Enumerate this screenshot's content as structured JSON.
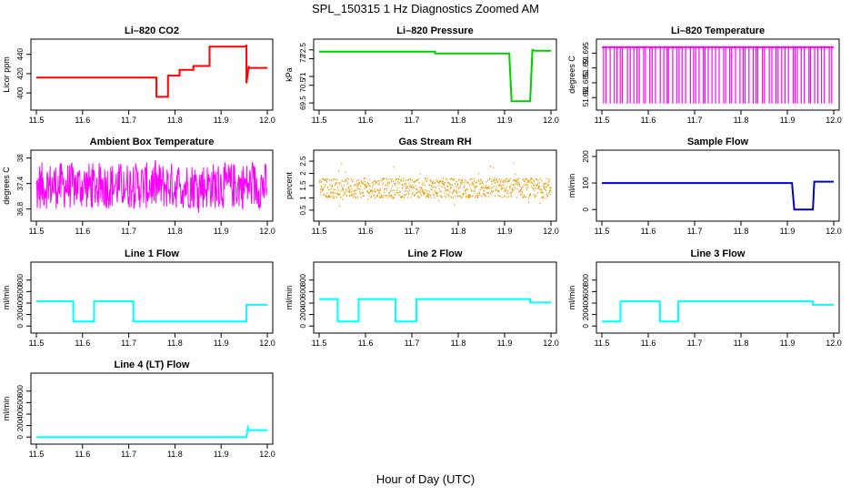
{
  "figure": {
    "title": "SPL_150315  1 Hz Diagnostics Zoomed AM",
    "xlabel": "Hour of Day (UTC)"
  },
  "chart_data": [
    {
      "type": "line",
      "title": "Li–820 CO2",
      "ylabel": "Licor ppm",
      "color": "#ff0000",
      "xlim": [
        11.5,
        12.0
      ],
      "ylim": [
        386,
        452
      ],
      "xticks": [
        "11.5",
        "11.6",
        "11.7",
        "11.8",
        "11.9",
        "12.0"
      ],
      "yticks": [
        380,
        400,
        420,
        440
      ],
      "series": [
        {
          "x": [
            11.5,
            11.76,
            11.76,
            11.785,
            11.785,
            11.81,
            11.81,
            11.84,
            11.84,
            11.875,
            11.875,
            11.95,
            11.955,
            11.955,
            11.96,
            11.96,
            11.97,
            12.0
          ],
          "y": [
            416,
            416,
            396,
            396,
            418,
            418,
            424,
            424,
            428,
            428,
            448,
            448,
            449,
            410,
            428,
            426,
            426,
            426
          ]
        }
      ]
    },
    {
      "type": "line",
      "title": "Li–820 Pressure",
      "ylabel": "kPa",
      "color": "#00cc00",
      "xlim": [
        11.5,
        12.0
      ],
      "ylim": [
        69.3,
        72.9
      ],
      "xticks": [
        "11.5",
        "11.6",
        "11.7",
        "11.8",
        "11.9",
        "12.0"
      ],
      "yticks": [
        69.5,
        70.5,
        71.0,
        72.0,
        72.5
      ],
      "series": [
        {
          "x": [
            11.5,
            11.75,
            11.75,
            11.91,
            11.915,
            11.915,
            11.955,
            11.96,
            11.965,
            12.0
          ],
          "y": [
            72.4,
            72.4,
            72.3,
            72.3,
            69.7,
            69.6,
            69.6,
            72.5,
            72.45,
            72.45
          ]
        }
      ]
    },
    {
      "type": "line",
      "title": "Li–820 Temperature",
      "ylabel": "degrees C",
      "color": "#ff00ff",
      "xlim": [
        11.5,
        12.0
      ],
      "ylim": [
        51.677,
        51.6985
      ],
      "xticks": [
        "11.5",
        "11.6",
        "11.7",
        "11.8",
        "11.9",
        "12.0"
      ],
      "yticks": [
        51.68,
        51.685,
        51.69,
        51.695
      ],
      "pattern": "toggling between 51.678 and 51.697"
    },
    {
      "type": "line",
      "title": "Ambient Box Temperature",
      "ylabel": "degrees C",
      "color": "#ff00ff",
      "xlim": [
        11.5,
        12.0
      ],
      "ylim": [
        36.6,
        38.1
      ],
      "xticks": [
        "11.5",
        "11.6",
        "11.7",
        "11.8",
        "11.9",
        "12.0"
      ],
      "yticks": [
        36.8,
        37.4,
        38.0
      ],
      "pattern": "dense noise between 36.8 and 37.9"
    },
    {
      "type": "scatter",
      "title": "Gas Stream RH",
      "ylabel": "percent",
      "color": "#e69a00",
      "xlim": [
        11.5,
        12.0
      ],
      "ylim": [
        0.2,
        2.8
      ],
      "xticks": [
        "11.5",
        "11.6",
        "11.7",
        "11.8",
        "11.9",
        "12.0"
      ],
      "yticks": [
        0.5,
        1.0,
        1.5,
        2.0,
        2.5
      ],
      "pattern": "dense noise between 1.0 and 1.8"
    },
    {
      "type": "line",
      "title": "Sample Flow",
      "ylabel": "ml/min",
      "color": "#0000cc",
      "xlim": [
        11.5,
        12.0
      ],
      "ylim": [
        -30,
        210
      ],
      "xticks": [
        "11.5",
        "11.6",
        "11.7",
        "11.8",
        "11.9",
        "12.0"
      ],
      "yticks": [
        0,
        100,
        200
      ],
      "series": [
        {
          "x": [
            11.5,
            11.91,
            11.915,
            11.955,
            11.958,
            12.0
          ],
          "y": [
            100,
            100,
            0,
            0,
            105,
            105
          ]
        }
      ]
    },
    {
      "type": "line",
      "title": "Line 1 Flow",
      "ylabel": "ml/min",
      "color": "#00ffff",
      "xlim": [
        11.5,
        12.0
      ],
      "ylim": [
        -60,
        1050
      ],
      "xticks": [
        "11.5",
        "11.6",
        "11.7",
        "11.8",
        "11.9",
        "12.0"
      ],
      "yticks": [
        0,
        200,
        400,
        600,
        800
      ],
      "series": [
        {
          "x": [
            11.5,
            11.58,
            11.58,
            11.625,
            11.625,
            11.71,
            11.71,
            11.955,
            11.955,
            12.0
          ],
          "y": [
            430,
            430,
            80,
            80,
            430,
            430,
            80,
            80,
            370,
            370
          ]
        }
      ]
    },
    {
      "type": "line",
      "title": "Line 2 Flow",
      "ylabel": "ml/min",
      "color": "#00ffff",
      "xlim": [
        11.5,
        12.0
      ],
      "ylim": [
        -60,
        1050
      ],
      "xticks": [
        "11.5",
        "11.6",
        "11.7",
        "11.8",
        "11.9",
        "12.0"
      ],
      "yticks": [
        0,
        200,
        400,
        600,
        800
      ],
      "series": [
        {
          "x": [
            11.5,
            11.54,
            11.54,
            11.585,
            11.585,
            11.665,
            11.665,
            11.71,
            11.71,
            11.955,
            11.955,
            12.0
          ],
          "y": [
            470,
            470,
            80,
            80,
            470,
            470,
            80,
            80,
            470,
            470,
            410,
            410
          ]
        }
      ]
    },
    {
      "type": "line",
      "title": "Line 3 Flow",
      "ylabel": "ml/min",
      "color": "#00ffff",
      "xlim": [
        11.5,
        12.0
      ],
      "ylim": [
        -60,
        1050
      ],
      "xticks": [
        "11.5",
        "11.6",
        "11.7",
        "11.8",
        "11.9",
        "12.0"
      ],
      "yticks": [
        0,
        200,
        400,
        600,
        800
      ],
      "series": [
        {
          "x": [
            11.5,
            11.54,
            11.54,
            11.625,
            11.625,
            11.665,
            11.665,
            11.955,
            11.955,
            12.0
          ],
          "y": [
            80,
            80,
            430,
            430,
            80,
            80,
            430,
            430,
            370,
            370
          ]
        }
      ]
    },
    {
      "type": "line",
      "title": "Line 4 (LT) Flow",
      "ylabel": "ml/min",
      "color": "#00ffff",
      "xlim": [
        11.5,
        12.0
      ],
      "ylim": [
        -60,
        1050
      ],
      "xticks": [
        "11.5",
        "11.6",
        "11.7",
        "11.8",
        "11.9",
        "12.0"
      ],
      "yticks": [
        0,
        200,
        400,
        600,
        800
      ],
      "series": [
        {
          "x": [
            11.5,
            11.955,
            11.958,
            11.96,
            11.965,
            12.0
          ],
          "y": [
            0,
            0,
            160,
            120,
            120,
            120
          ]
        }
      ]
    }
  ]
}
